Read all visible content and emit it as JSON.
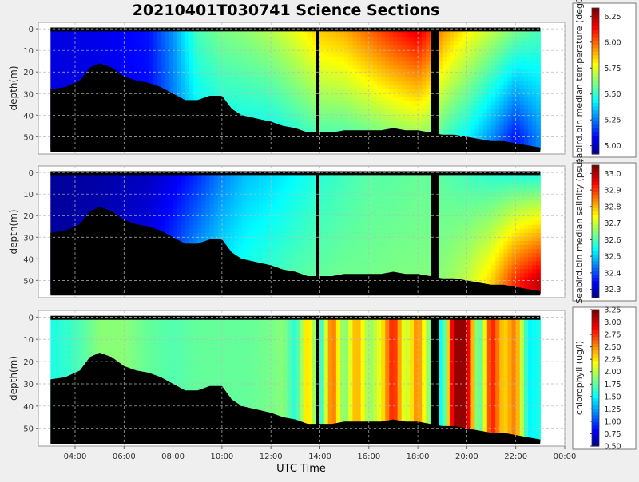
{
  "chart_data": {
    "type": "heatmap",
    "title": "20210401T030741 Science Sections",
    "xlabel": "UTC Time",
    "x_ticks": [
      "04:00",
      "06:00",
      "08:00",
      "10:00",
      "12:00",
      "14:00",
      "16:00",
      "18:00",
      "20:00",
      "22:00",
      "00:00"
    ],
    "x_range_hours": [
      2.5,
      24.0
    ],
    "depth_ticks": [
      "0",
      "10",
      "20",
      "30",
      "40",
      "50"
    ],
    "depth_range": [
      -3,
      58
    ],
    "grid": "dashed",
    "panels": [
      {
        "ylabel": "depth(m)",
        "colorbar_label": "seabird.bin median temperature (degC)",
        "colorbar_ticks": [
          "5.00",
          "5.25",
          "5.50",
          "5.75",
          "6.00",
          "6.25"
        ],
        "colorbar_range": [
          4.92,
          6.33
        ]
      },
      {
        "ylabel": "depth(m)",
        "colorbar_label": "Seabird.bin median salinity (psu)",
        "colorbar_ticks": [
          "32.3",
          "32.4",
          "32.5",
          "32.6",
          "32.7",
          "32.8",
          "32.9",
          "33.0"
        ],
        "colorbar_range": [
          32.25,
          33.05
        ]
      },
      {
        "ylabel": "depth(m)",
        "colorbar_label": "chlorophyll (ug/l)",
        "colorbar_ticks": [
          "0.50",
          "0.75",
          "1.00",
          "1.25",
          "1.50",
          "1.75",
          "2.00",
          "2.25",
          "2.50",
          "2.75",
          "3.00",
          "3.25"
        ],
        "colorbar_range": [
          0.5,
          3.25
        ]
      }
    ],
    "seafloor_depth_profile": {
      "time_hours": [
        3.0,
        3.6,
        4.2,
        4.6,
        5.0,
        5.5,
        6.0,
        6.5,
        7.0,
        7.5,
        8.0,
        8.5,
        9.0,
        9.5,
        10.0,
        10.4,
        10.8,
        11.2,
        11.6,
        12.0,
        12.5,
        13.0,
        13.5,
        14.0,
        14.5,
        15.0,
        15.5,
        16.0,
        16.5,
        17.0,
        17.5,
        18.0,
        18.5,
        19.0,
        19.5,
        20.0,
        20.5,
        21.0,
        21.5,
        22.0,
        22.5,
        23.0
      ],
      "depth_m": [
        28,
        27,
        24,
        18,
        16,
        18,
        22,
        24,
        25,
        27,
        30,
        33,
        33,
        31,
        31,
        37,
        40,
        41,
        42,
        43,
        45,
        46,
        48,
        48,
        48,
        47,
        47,
        47,
        47,
        46,
        47,
        47,
        48,
        49,
        49,
        50,
        51,
        52,
        52,
        53,
        54,
        55
      ]
    },
    "temperature_profile": {
      "time_hours": [
        3.0,
        5.0,
        7.0,
        8.0,
        9.0,
        10.0,
        11.0,
        12.0,
        13.0,
        14.0,
        15.0,
        16.0,
        17.0,
        18.0,
        18.5,
        19.0,
        20.0,
        21.0,
        22.0,
        23.0
      ],
      "surface_degC": [
        5.05,
        5.07,
        5.12,
        5.3,
        5.55,
        5.62,
        5.65,
        5.7,
        5.78,
        5.88,
        5.92,
        6.02,
        6.12,
        6.2,
        6.1,
        5.95,
        5.82,
        5.72,
        5.62,
        5.55
      ],
      "bottom_degC": [
        5.05,
        5.05,
        5.1,
        5.25,
        5.4,
        5.45,
        5.45,
        5.45,
        5.5,
        5.55,
        5.55,
        5.58,
        5.62,
        5.65,
        5.62,
        5.55,
        5.45,
        5.3,
        5.12,
        5.3
      ]
    },
    "salinity_profile": {
      "time_hours": [
        3.0,
        5.0,
        7.0,
        8.0,
        9.0,
        10.0,
        11.0,
        12.0,
        13.0,
        14.0,
        15.0,
        16.0,
        17.0,
        18.0,
        19.0,
        20.0,
        21.0,
        22.0,
        23.0
      ],
      "surface_psu": [
        32.27,
        32.28,
        32.3,
        32.33,
        32.38,
        32.45,
        32.5,
        32.52,
        32.55,
        32.58,
        32.6,
        32.62,
        32.62,
        32.63,
        32.62,
        32.6,
        32.58,
        32.57,
        32.56
      ],
      "bottom_psu": [
        32.27,
        32.3,
        32.35,
        32.42,
        32.5,
        32.55,
        32.58,
        32.6,
        32.62,
        32.63,
        32.64,
        32.64,
        32.65,
        32.65,
        32.66,
        32.7,
        32.78,
        32.92,
        33.0
      ]
    },
    "chlorophyll_profile": {
      "time_hours": [
        3.0,
        4.0,
        5.0,
        6.0,
        7.0,
        8.0,
        9.0,
        10.0,
        11.0,
        12.0,
        12.5,
        13.0,
        13.5,
        14.0,
        14.5,
        15.0,
        15.5,
        16.0,
        16.5,
        17.0,
        17.5,
        18.0,
        18.5,
        19.0,
        19.5,
        20.0,
        20.5,
        21.0,
        21.5,
        22.0,
        22.5,
        23.0
      ],
      "value_ugl": [
        1.6,
        1.7,
        1.9,
        1.9,
        1.8,
        1.75,
        1.8,
        1.8,
        1.8,
        1.85,
        1.9,
        1.6,
        2.4,
        1.5,
        2.7,
        1.8,
        2.5,
        1.9,
        2.2,
        2.9,
        2.0,
        2.6,
        1.8,
        1.5,
        3.2,
        3.2,
        1.6,
        2.9,
        2.3,
        2.6,
        1.5,
        1.6
      ]
    }
  }
}
